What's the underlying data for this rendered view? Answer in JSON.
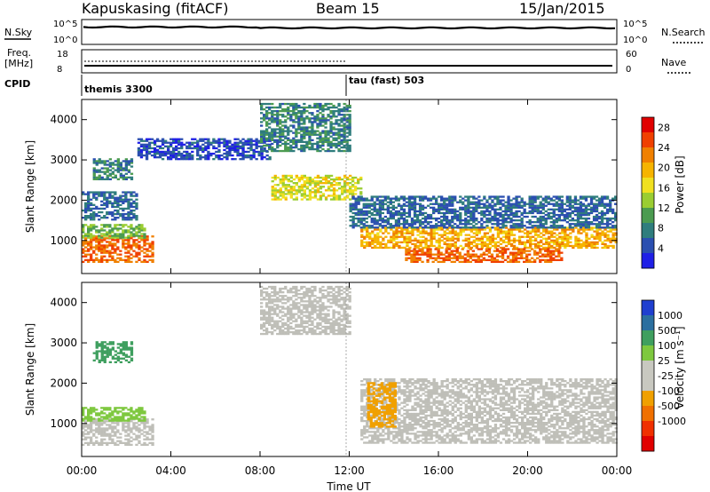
{
  "header": {
    "station": "Kapuskasing (fitACF)",
    "beam": "Beam 15",
    "date": "15/Jan/2015"
  },
  "noise_panel": {
    "left_label": "N.Sky",
    "left_ticks": [
      "10^5",
      "10^0"
    ],
    "right_label": "N.Search",
    "right_ticks": [
      "10^5",
      "10^0"
    ]
  },
  "freq_panel": {
    "left_label_1": "Freq.",
    "left_label_2": "[MHz]",
    "left_ticks": [
      "18",
      "8"
    ],
    "right_label": "Nave",
    "right_ticks": [
      "60",
      "0"
    ]
  },
  "cpid_panel": {
    "label": "CPID",
    "modes": [
      {
        "name": "themis 3300",
        "start_hour": 0
      },
      {
        "name": "tau (fast) 503",
        "start_hour": 12
      }
    ]
  },
  "chart_data": [
    {
      "type": "heatmap",
      "panel": "power",
      "ylabel": "Slant Range [km]",
      "xlabel": "Time UT",
      "xlim_hours": [
        0,
        24
      ],
      "ylim_km": [
        180,
        4500
      ],
      "y_ticks": [
        1000,
        2000,
        3000,
        4000
      ],
      "x_tick_labels": [
        "00:00",
        "04:00",
        "08:00",
        "12:00",
        "16:00",
        "20:00",
        "00:00"
      ],
      "colorbar_label": "Power [dB]",
      "colorbar_ticks": [
        "4",
        "8",
        "12",
        "16",
        "20",
        "24",
        "28"
      ],
      "colorbar_colors": [
        "#1f1fe6",
        "#2b4fb0",
        "#2f7d7d",
        "#4b9b50",
        "#9acd32",
        "#f0e020",
        "#f6b400",
        "#f08000",
        "#f04000",
        "#e00000"
      ],
      "echo_regions": [
        {
          "t0": 0.0,
          "t1": 3.2,
          "r0": 450,
          "r1": 1100,
          "val": 26
        },
        {
          "t0": 0.0,
          "t1": 2.8,
          "r0": 1050,
          "r1": 1400,
          "val": 14
        },
        {
          "t0": 0.0,
          "t1": 2.5,
          "r0": 1500,
          "r1": 2200,
          "val": 8
        },
        {
          "t0": 0.5,
          "t1": 2.2,
          "r0": 2500,
          "r1": 3000,
          "val": 10
        },
        {
          "t0": 2.5,
          "t1": 8.5,
          "r0": 3000,
          "r1": 3500,
          "val": 6
        },
        {
          "t0": 8.0,
          "t1": 12.0,
          "r0": 3200,
          "r1": 4400,
          "val": 10
        },
        {
          "t0": 8.5,
          "t1": 12.5,
          "r0": 2000,
          "r1": 2600,
          "val": 18
        },
        {
          "t0": 12.5,
          "t1": 24.0,
          "r0": 800,
          "r1": 1300,
          "val": 22
        },
        {
          "t0": 14.5,
          "t1": 21.5,
          "r0": 450,
          "r1": 800,
          "val": 26
        },
        {
          "t0": 12.0,
          "t1": 24.0,
          "r0": 1300,
          "r1": 2100,
          "val": 8
        }
      ]
    },
    {
      "type": "heatmap",
      "panel": "velocity",
      "ylabel": "Slant Range [km]",
      "xlabel": "Time UT",
      "xlim_hours": [
        0,
        24
      ],
      "ylim_km": [
        180,
        4500
      ],
      "y_ticks": [
        1000,
        2000,
        3000,
        4000
      ],
      "x_tick_labels": [
        "00:00",
        "04:00",
        "08:00",
        "12:00",
        "16:00",
        "20:00",
        "00:00"
      ],
      "colorbar_label": "Velocity [m s⁻¹]",
      "colorbar_ticks": [
        "1000",
        "500",
        "100",
        "25",
        "-25",
        "-100",
        "-500",
        "-1000"
      ],
      "colorbar_colors": [
        "#1f3fcf",
        "#2b6f9f",
        "#3f9f5f",
        "#7ec83f",
        "#c8c8c0",
        "#c8c8c0",
        "#f0a000",
        "#f07000",
        "#f03000",
        "#e00000"
      ],
      "ground_scatter_color": "#bfbfb8",
      "echo_regions": [
        {
          "t0": 0.0,
          "t1": 3.2,
          "r0": 450,
          "r1": 1100,
          "val": 0
        },
        {
          "t0": 0.0,
          "t1": 2.8,
          "r0": 1050,
          "r1": 1400,
          "val": 80
        },
        {
          "t0": 0.5,
          "t1": 2.2,
          "r0": 2500,
          "r1": 3000,
          "val": 120
        },
        {
          "t0": 8.0,
          "t1": 12.0,
          "r0": 3200,
          "r1": 4400,
          "val": 0
        },
        {
          "t0": 12.5,
          "t1": 24.0,
          "r0": 500,
          "r1": 2100,
          "val": 0
        },
        {
          "t0": 12.8,
          "t1": 14.0,
          "r0": 900,
          "r1": 2000,
          "val": -200
        }
      ]
    }
  ]
}
